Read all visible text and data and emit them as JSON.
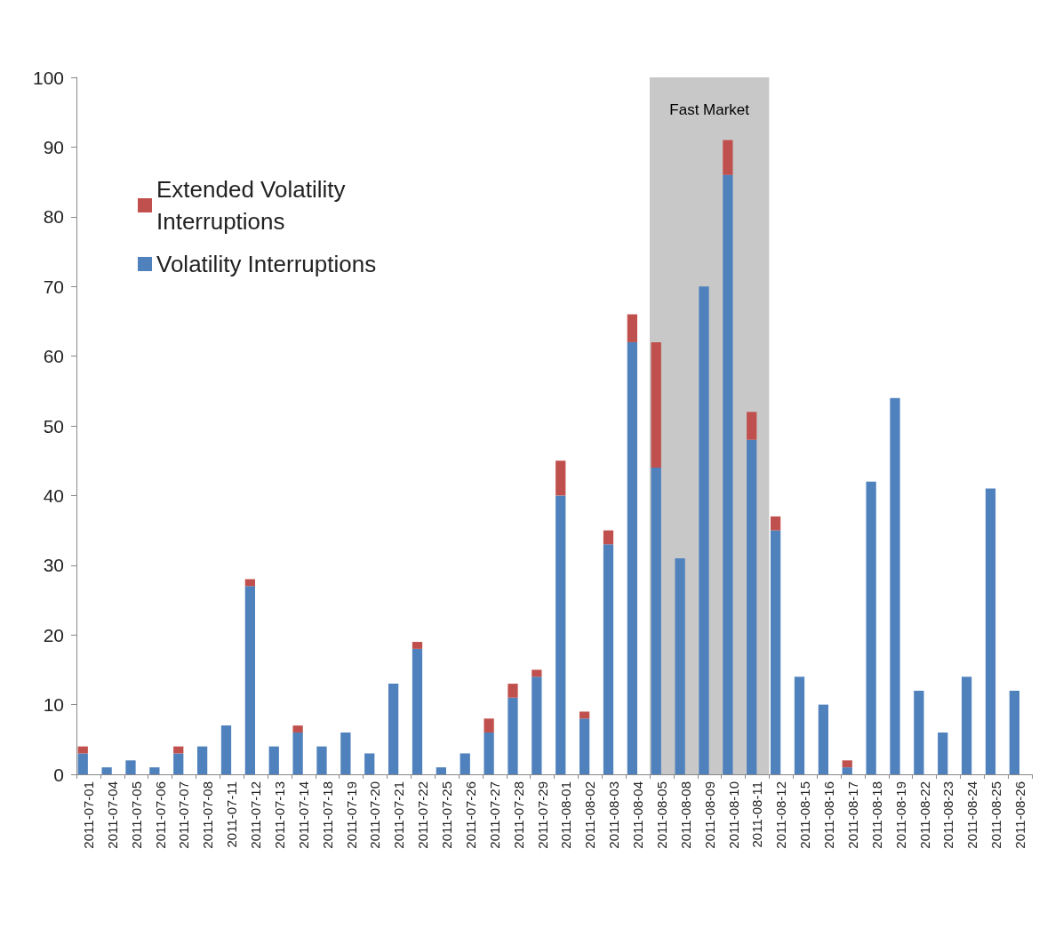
{
  "chart_data": {
    "type": "bar",
    "stacked": true,
    "categories": [
      "2011-07-01",
      "2011-07-04",
      "2011-07-05",
      "2011-07-06",
      "2011-07-07",
      "2011-07-08",
      "2011-07-11",
      "2011-07-12",
      "2011-07-13",
      "2011-07-14",
      "2011-07-18",
      "2011-07-19",
      "2011-07-20",
      "2011-07-21",
      "2011-07-22",
      "2011-07-25",
      "2011-07-26",
      "2011-07-27",
      "2011-07-28",
      "2011-07-29",
      "2011-08-01",
      "2011-08-02",
      "2011-08-03",
      "2011-08-04",
      "2011-08-05",
      "2011-08-08",
      "2011-08-09",
      "2011-08-10",
      "2011-08-11",
      "2011-08-12",
      "2011-08-15",
      "2011-08-16",
      "2011-08-17",
      "2011-08-18",
      "2011-08-19",
      "2011-08-22",
      "2011-08-23",
      "2011-08-24",
      "2011-08-25",
      "2011-08-26"
    ],
    "series": [
      {
        "name": "Volatility Interruptions",
        "color": "#4f81bd",
        "values": [
          3,
          1,
          2,
          1,
          3,
          4,
          7,
          27,
          4,
          6,
          4,
          6,
          3,
          13,
          18,
          1,
          3,
          6,
          11,
          14,
          40,
          8,
          33,
          62,
          44,
          31,
          70,
          86,
          48,
          35,
          14,
          10,
          1,
          42,
          54,
          12,
          6,
          14,
          41,
          12
        ]
      },
      {
        "name": "Extended Volatility Interruptions",
        "color": "#c0504d",
        "values": [
          1,
          0,
          0,
          0,
          1,
          0,
          0,
          1,
          0,
          1,
          0,
          0,
          0,
          0,
          1,
          0,
          0,
          2,
          2,
          1,
          5,
          1,
          2,
          4,
          18,
          0,
          0,
          5,
          4,
          2,
          0,
          0,
          1,
          0,
          0,
          0,
          0,
          0,
          0,
          0
        ]
      }
    ],
    "ylim": [
      0,
      100
    ],
    "yticks": [
      0,
      10,
      20,
      30,
      40,
      50,
      60,
      70,
      80,
      90,
      100
    ],
    "bands": [
      {
        "axis": "x",
        "from": "2011-08-05",
        "to": "2011-08-11",
        "label": "Fast Market",
        "color": "#c8c8c8"
      }
    ],
    "grid": false,
    "legend": "top left"
  }
}
